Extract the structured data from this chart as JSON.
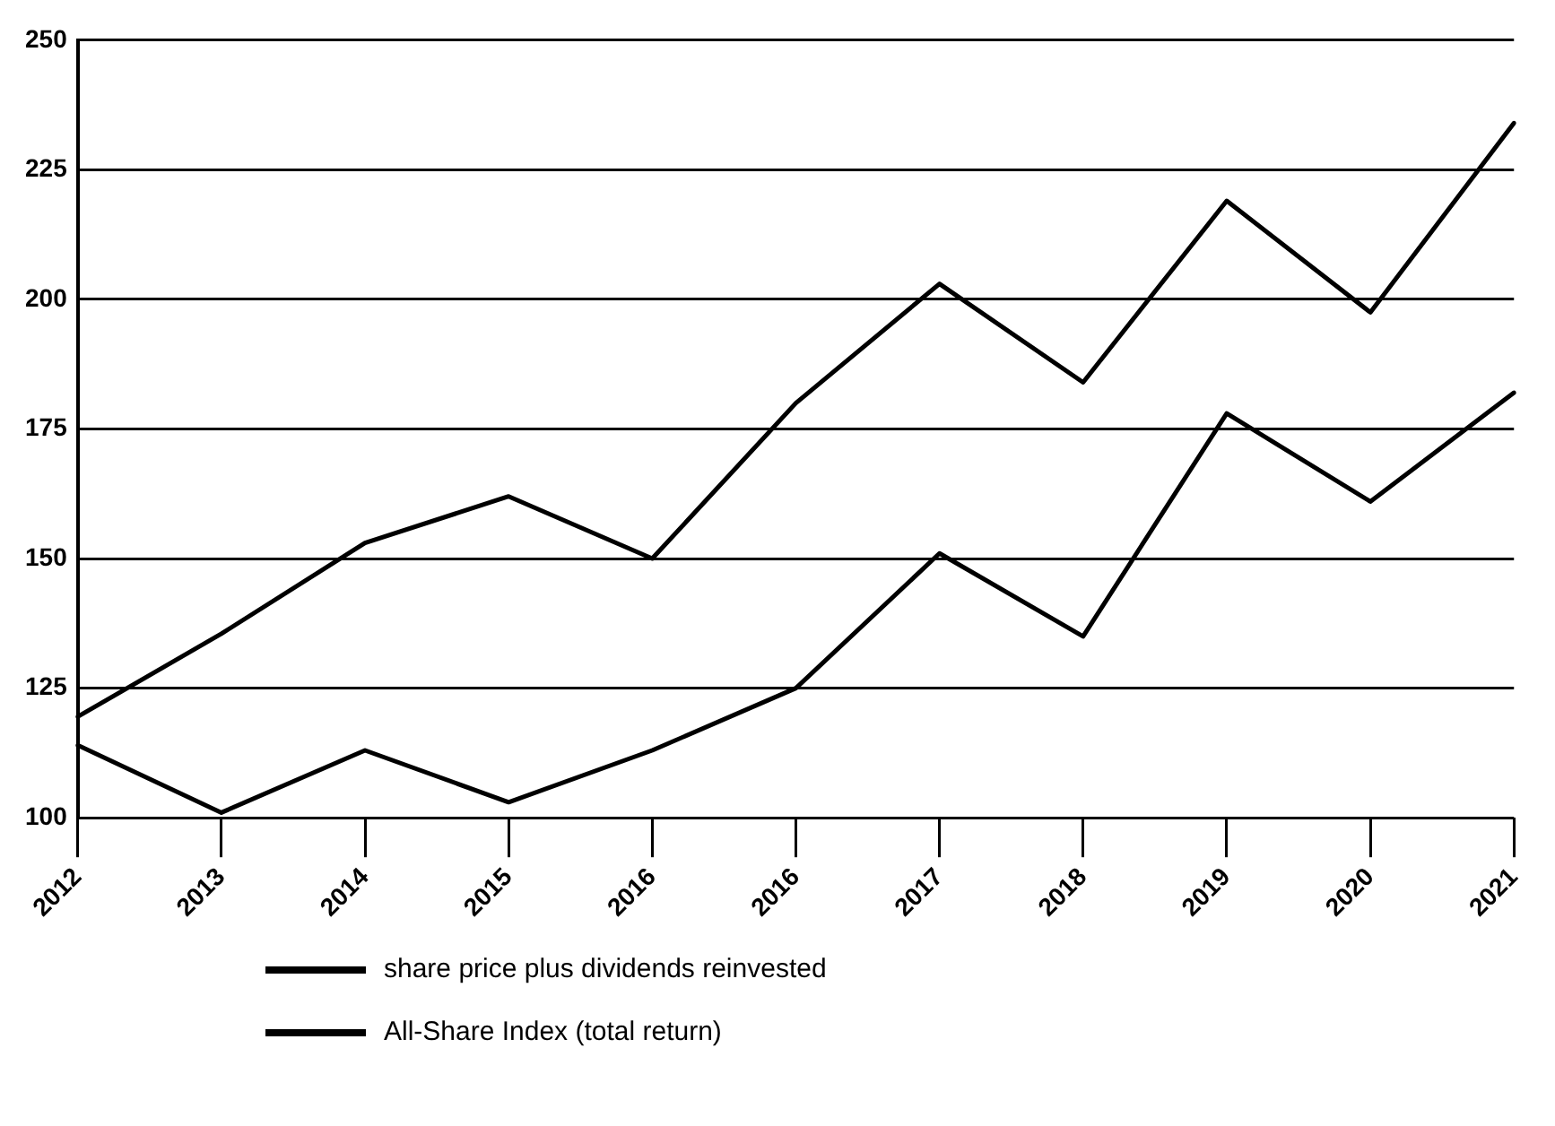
{
  "chart_data": {
    "type": "line",
    "categories": [
      "2012",
      "2013",
      "2014",
      "2015",
      "2016",
      "2016",
      "2017",
      "2018",
      "2019",
      "2020",
      "2021"
    ],
    "series": [
      {
        "name": "share price plus dividends reinvested",
        "color": "#000000",
        "values": [
          119.5,
          135.5,
          153,
          162,
          150,
          180,
          203,
          184,
          219,
          197.5,
          234
        ]
      },
      {
        "name": "All-Share Index (total return)",
        "color": "#000000",
        "values": [
          114,
          101,
          113,
          103,
          113,
          125,
          151,
          135,
          178,
          161,
          182
        ]
      }
    ],
    "ylim": [
      100,
      250
    ],
    "yticks": [
      100,
      125,
      150,
      175,
      200,
      225,
      250
    ],
    "grid": "y",
    "legend": "bottom left",
    "marker": "none",
    "line_style": "solid"
  }
}
